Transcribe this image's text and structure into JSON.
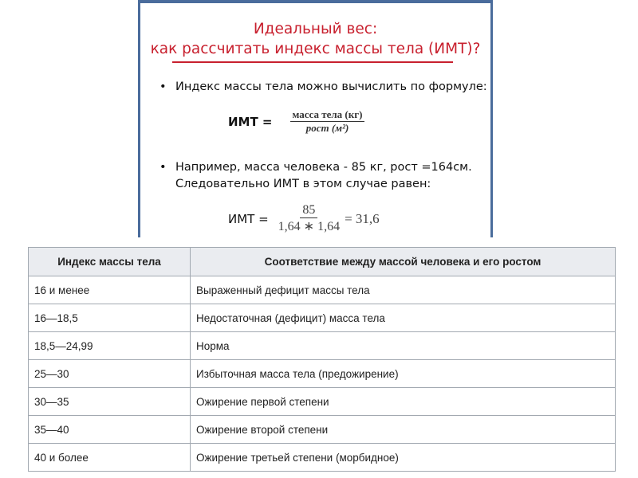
{
  "slide": {
    "title_line1": "Идеальный вес:",
    "title_line2": "как рассчитать индекс массы тела (ИМТ)?",
    "bullet1": "Индекс массы тела можно вычислить по формуле:",
    "formula1": {
      "label": "ИМТ =",
      "numerator": "масса тела (кг)",
      "denominator": "рост (м²)"
    },
    "bullet2": "Например, масса человека - 85 кг, рост =164см. Следовательно ИМТ в этом случае равен:",
    "formula2": {
      "label": "ИМТ =",
      "numerator": "85",
      "denominator": "1,64 ∗ 1,64",
      "result": "= 31,6"
    },
    "accent_color": "#c8202e",
    "frame_color": "#4a6c9c"
  },
  "table": {
    "headers": [
      "Индекс массы тела",
      "Соответствие между массой человека и его ростом"
    ],
    "rows": [
      [
        "16 и менее",
        "Выраженный дефицит массы тела"
      ],
      [
        "16—18,5",
        "Недостаточная  (дефицит) масса тела"
      ],
      [
        "18,5—24,99",
        "Норма"
      ],
      [
        "25—30",
        "Избыточная масса тела (предожирение)"
      ],
      [
        "30—35",
        "Ожирение первой степени"
      ],
      [
        "35—40",
        "Ожирение второй степени"
      ],
      [
        "40 и более",
        "Ожирение третьей степени (морбидное)"
      ]
    ]
  }
}
